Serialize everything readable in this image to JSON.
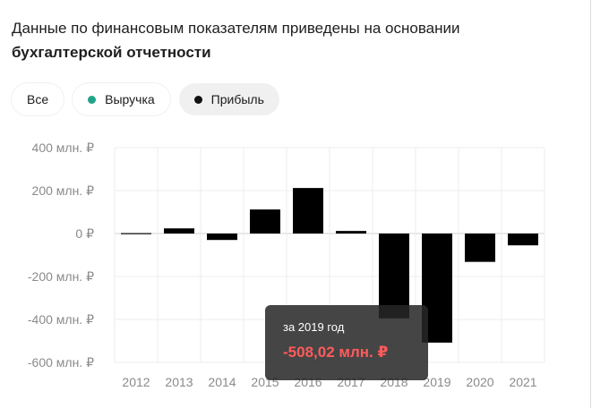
{
  "header": {
    "text_regular": "Данные по финансовым показателям приведены на основании ",
    "text_bold": "бухгалтерской отчетности"
  },
  "filters": [
    {
      "label": "Все",
      "active": false,
      "dot_color": null
    },
    {
      "label": "Выручка",
      "active": false,
      "dot_color": "#21a38a"
    },
    {
      "label": "Прибыль",
      "active": true,
      "dot_color": "#111111"
    }
  ],
  "chart_data": {
    "type": "bar",
    "categories": [
      "2012",
      "2013",
      "2014",
      "2015",
      "2016",
      "2017",
      "2018",
      "2019",
      "2020",
      "2021"
    ],
    "values": [
      2,
      24,
      -30,
      112,
      212,
      12,
      -395,
      -508.02,
      -132,
      -55
    ],
    "y_ticks": [
      "400 млн. ₽",
      "200 млн. ₽",
      "0 ₽",
      "-200 млн. ₽",
      "-400 млн. ₽",
      "-600 млн. ₽"
    ],
    "y_tick_values": [
      400,
      200,
      0,
      -200,
      -400,
      -600
    ],
    "ylim": [
      -600,
      400
    ],
    "grid": true,
    "bar_color": "#000000",
    "title": "",
    "xlabel": "",
    "ylabel": ""
  },
  "tooltip": {
    "title": "за 2019 год",
    "value": "-508,02 млн. ₽"
  }
}
